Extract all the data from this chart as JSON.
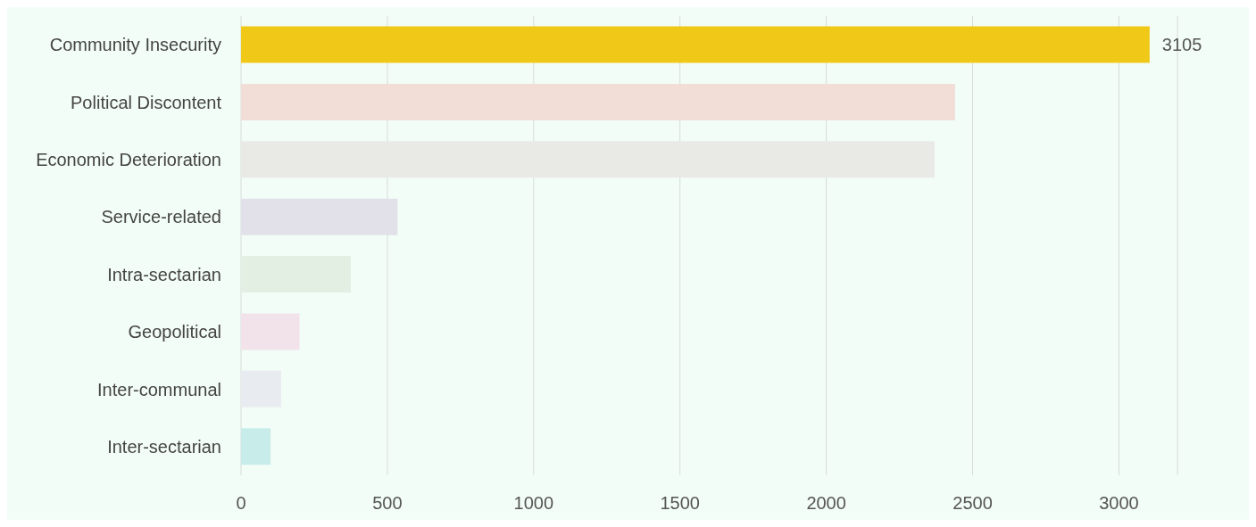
{
  "chart_data": {
    "type": "bar",
    "orientation": "horizontal",
    "categories": [
      "Community Insecurity",
      "Political Discontent",
      "Economic Deterioration",
      "Service-related",
      "Intra-sectarian",
      "Geopolitical",
      "Inter-communal",
      "Inter-sectarian"
    ],
    "values": [
      3105,
      2440,
      2370,
      535,
      375,
      200,
      137,
      101
    ],
    "value_labels": [
      "3105",
      null,
      null,
      null,
      null,
      null,
      null,
      null
    ],
    "colors": [
      "#f0c818",
      "#f2ddd7",
      "#e9eae6",
      "#e2e1ea",
      "#e4efe4",
      "#f2e3eb",
      "#e8ecf0",
      "#c8ecea"
    ],
    "xlim": [
      0,
      3200
    ],
    "xticks": [
      0,
      500,
      1000,
      1500,
      2000,
      2500,
      3000
    ],
    "grid": "x"
  }
}
